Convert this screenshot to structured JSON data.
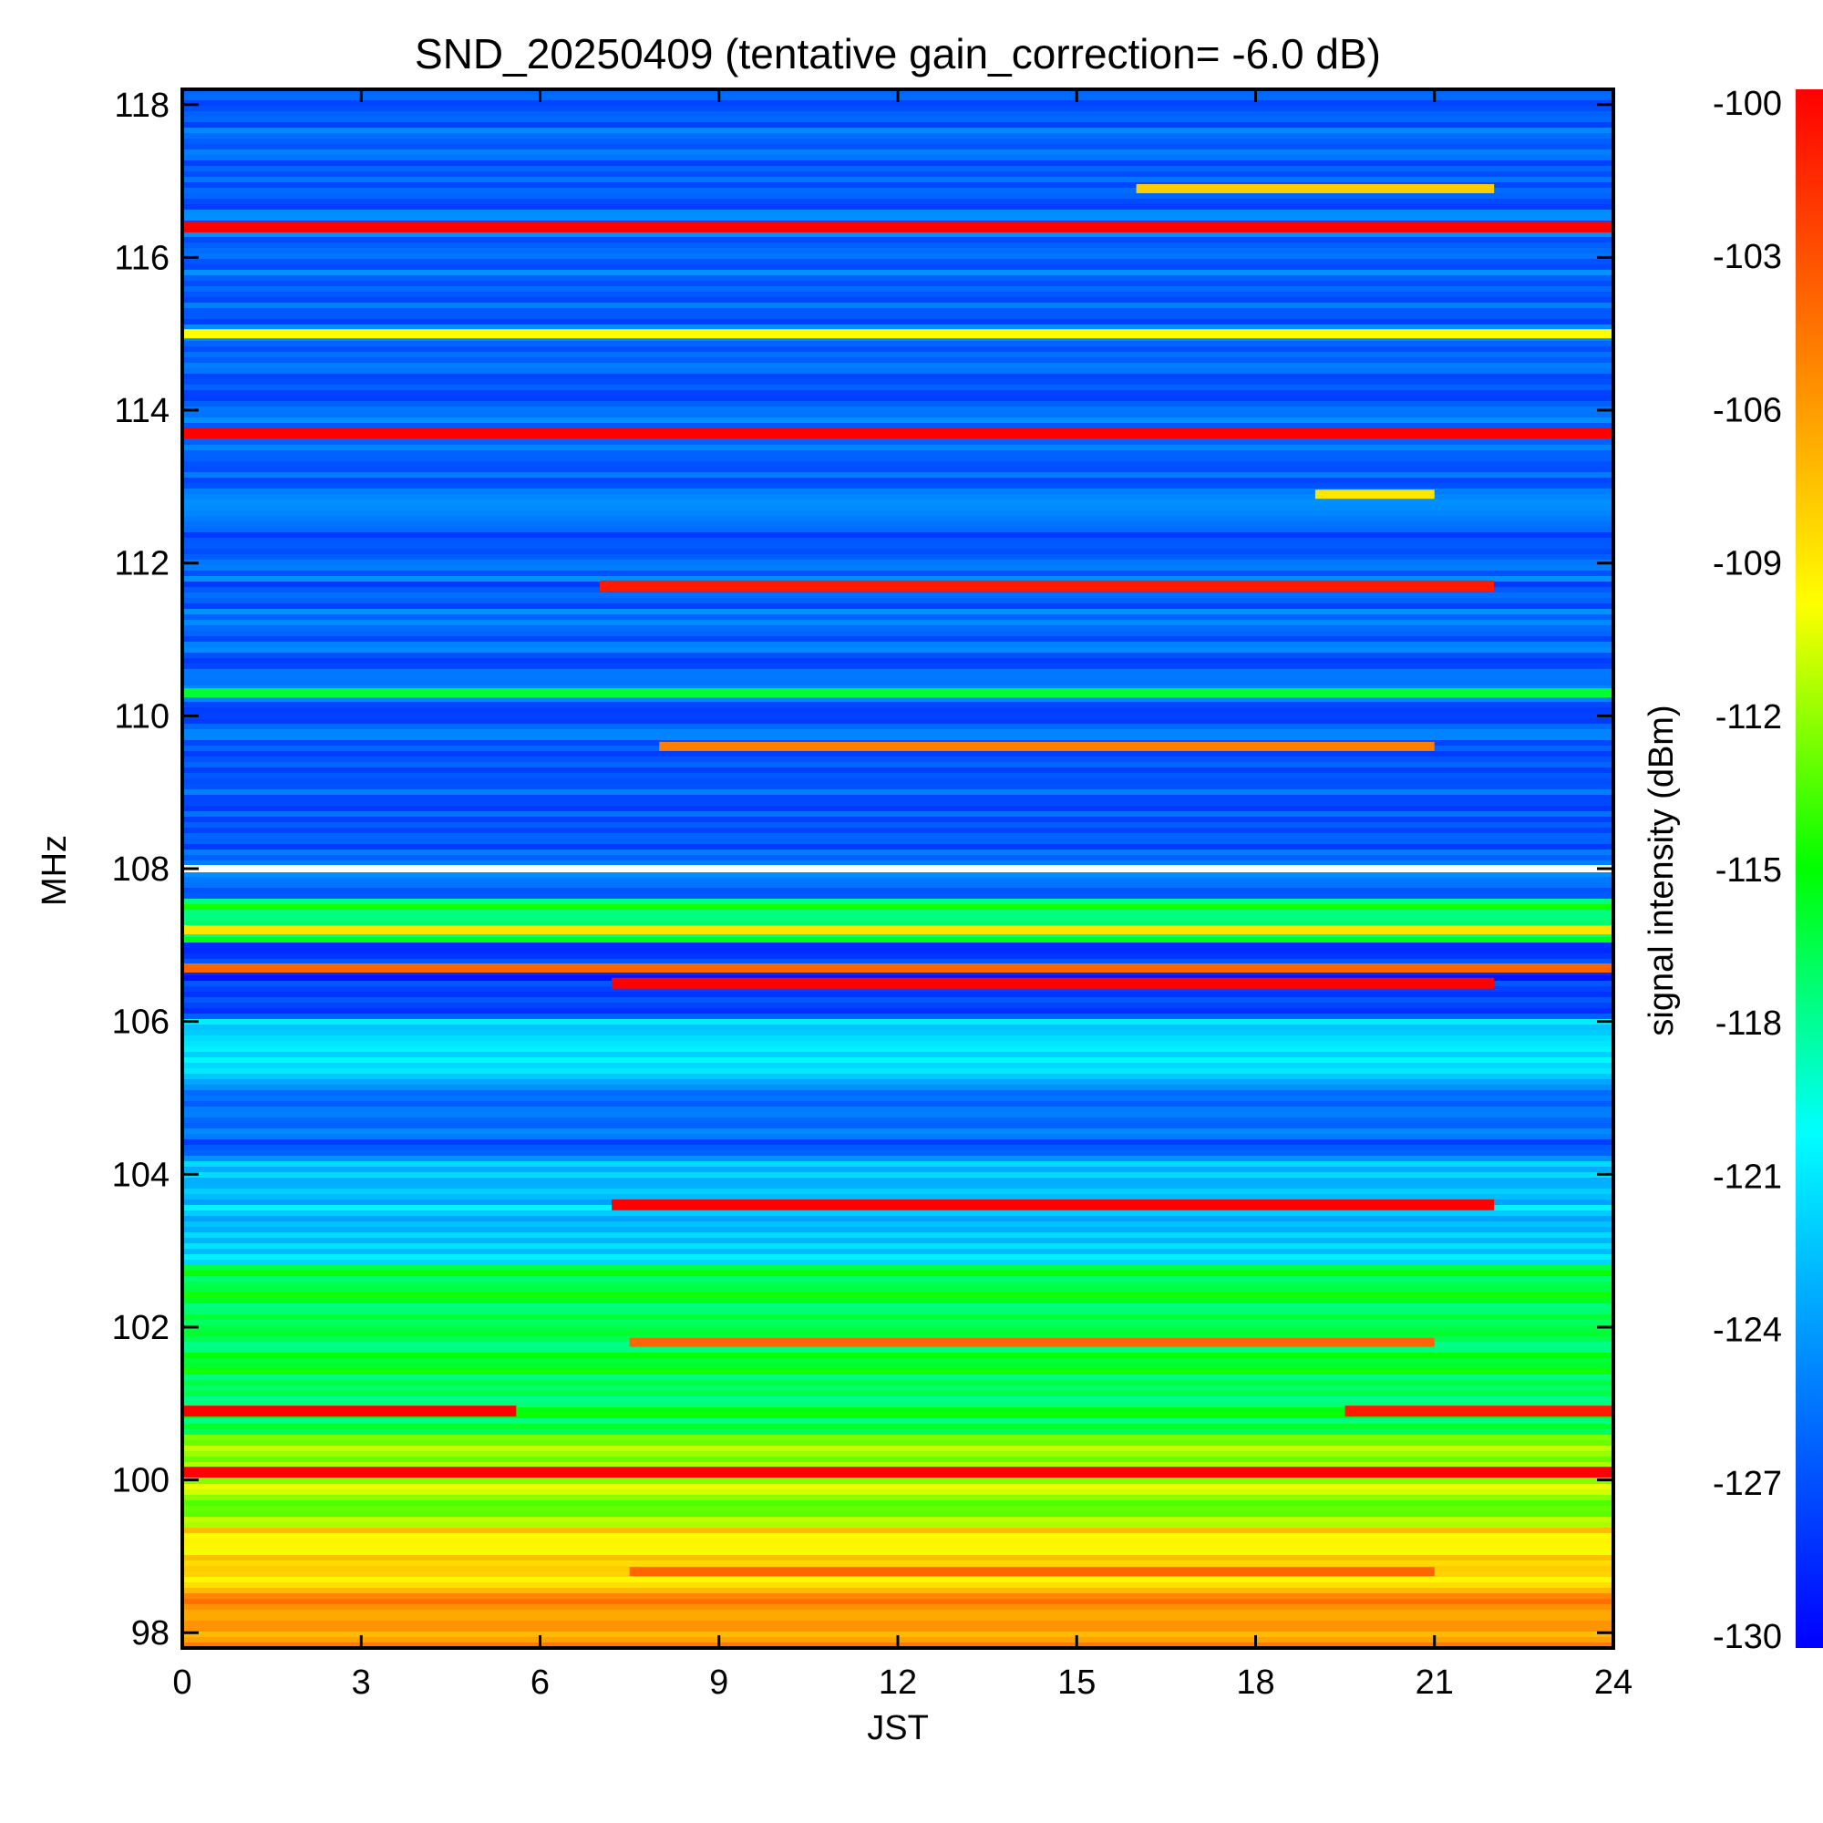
{
  "chart_data": {
    "type": "heatmap",
    "title": "SND_20250409 (tentative gain_correction= -6.0 dB)",
    "xlabel": "JST",
    "ylabel": "MHz",
    "colorbar_label": "signal intensity (dBm)",
    "xlim": [
      0,
      24
    ],
    "ylim": [
      97.8,
      118.2
    ],
    "x_ticks": [
      0,
      3,
      6,
      9,
      12,
      15,
      18,
      21,
      24
    ],
    "y_ticks": [
      98,
      100,
      102,
      104,
      106,
      108,
      110,
      112,
      114,
      116,
      118
    ],
    "colorbar_range": [
      -130,
      -100
    ],
    "colorbar_ticks": [
      -100,
      -103,
      -106,
      -109,
      -112,
      -115,
      -118,
      -121,
      -124,
      -127,
      -130
    ],
    "colormap": [
      "#0000ff",
      "#0080ff",
      "#00ffff",
      "#00ff00",
      "#ffff00",
      "#ff8000",
      "#ff0000"
    ],
    "baseline_bands": [
      {
        "from_mhz": 97.8,
        "to_mhz": 98.6,
        "dbm": -106
      },
      {
        "from_mhz": 98.6,
        "to_mhz": 99.4,
        "dbm": -109
      },
      {
        "from_mhz": 99.4,
        "to_mhz": 100.6,
        "dbm": -112
      },
      {
        "from_mhz": 100.6,
        "to_mhz": 102.8,
        "dbm": -116
      },
      {
        "from_mhz": 102.8,
        "to_mhz": 104.2,
        "dbm": -122
      },
      {
        "from_mhz": 104.2,
        "to_mhz": 105.2,
        "dbm": -126
      },
      {
        "from_mhz": 105.2,
        "to_mhz": 106.0,
        "dbm": -122
      },
      {
        "from_mhz": 106.0,
        "to_mhz": 107.0,
        "dbm": -128
      },
      {
        "from_mhz": 107.0,
        "to_mhz": 107.6,
        "dbm": -116
      },
      {
        "from_mhz": 107.6,
        "to_mhz": 118.2,
        "dbm": -126
      }
    ],
    "signals": [
      {
        "freq_mhz": 116.4,
        "start": 0,
        "end": 24,
        "dbm": -100
      },
      {
        "freq_mhz": 115.0,
        "start": 0,
        "end": 24,
        "dbm": -110
      },
      {
        "freq_mhz": 113.7,
        "start": 0,
        "end": 24,
        "dbm": -100
      },
      {
        "freq_mhz": 111.7,
        "start": 7,
        "end": 22,
        "dbm": -101
      },
      {
        "freq_mhz": 116.9,
        "start": 16,
        "end": 22,
        "dbm": -108
      },
      {
        "freq_mhz": 112.9,
        "start": 19,
        "end": 21,
        "dbm": -109
      },
      {
        "freq_mhz": 110.3,
        "start": 0,
        "end": 24,
        "dbm": -116
      },
      {
        "freq_mhz": 109.6,
        "start": 8,
        "end": 21,
        "dbm": -105
      },
      {
        "freq_mhz": 107.2,
        "start": 0,
        "end": 24,
        "dbm": -109
      },
      {
        "freq_mhz": 106.7,
        "start": 0,
        "end": 24,
        "dbm": -104
      },
      {
        "freq_mhz": 106.5,
        "start": 7.2,
        "end": 22,
        "dbm": -100
      },
      {
        "freq_mhz": 103.6,
        "start": 7.2,
        "end": 22,
        "dbm": -100
      },
      {
        "freq_mhz": 101.8,
        "start": 7.5,
        "end": 21,
        "dbm": -104
      },
      {
        "freq_mhz": 100.9,
        "start": 0,
        "end": 5.6,
        "dbm": -100
      },
      {
        "freq_mhz": 100.9,
        "start": 19.5,
        "end": 24,
        "dbm": -101
      },
      {
        "freq_mhz": 100.1,
        "start": 0,
        "end": 24,
        "dbm": -100
      },
      {
        "freq_mhz": 98.8,
        "start": 7.5,
        "end": 21,
        "dbm": -104
      }
    ],
    "gap_mhz": 108.0
  }
}
